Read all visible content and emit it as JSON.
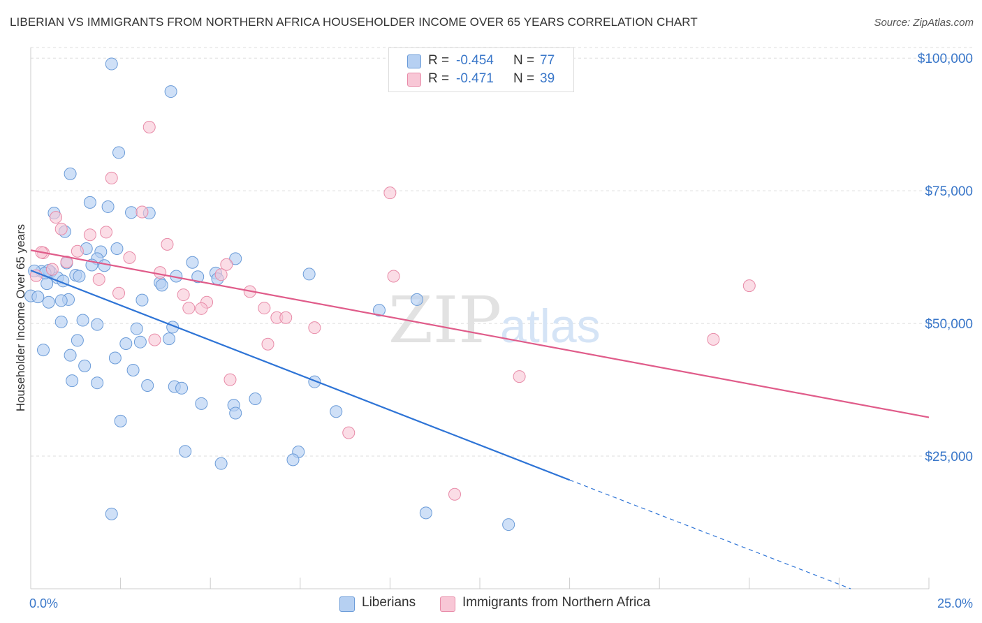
{
  "title": "LIBERIAN VS IMMIGRANTS FROM NORTHERN AFRICA HOUSEHOLDER INCOME OVER 65 YEARS CORRELATION CHART",
  "source": "Source: ZipAtlas.com",
  "watermark": {
    "zip": "ZIP",
    "atlas": "atlas"
  },
  "legend": {
    "series1": {
      "r_label": "R =",
      "r_value": "-0.454",
      "n_label": "N =",
      "n_value": "77"
    },
    "series2": {
      "r_label": "R =",
      "r_value": "-0.471",
      "n_label": "N =",
      "n_value": "39"
    }
  },
  "bottom_legend": {
    "series1": "Liberians",
    "series2": "Immigrants from Northern Africa"
  },
  "colors": {
    "series1_fill": "#b6d0f2",
    "series1_stroke": "#6a9bd8",
    "series1_line": "#2e74d6",
    "series2_fill": "#f8c7d6",
    "series2_stroke": "#e88ba8",
    "series2_line": "#e05c8a",
    "axis_label": "#3a77c9",
    "grid": "#dddddd"
  },
  "chart_data": {
    "type": "scatter",
    "title": "LIBERIAN VS IMMIGRANTS FROM NORTHERN AFRICA HOUSEHOLDER INCOME OVER 65 YEARS CORRELATION CHART",
    "xlabel": "",
    "ylabel": "Householder Income Over 65 years",
    "xlim": [
      0,
      25
    ],
    "ylim": [
      0,
      102000
    ],
    "x_tick_labels": [
      "0.0%",
      "25.0%"
    ],
    "y_ticks": [
      25000,
      50000,
      75000,
      100000
    ],
    "y_tick_labels": [
      "$25,000",
      "$50,000",
      "$75,000",
      "$100,000"
    ],
    "grid": true,
    "legend_position": "top-center",
    "series": [
      {
        "name": "Liberians",
        "color": "#b6d0f2",
        "trend": {
          "x": [
            0,
            15
          ],
          "y": [
            60000,
            20500
          ],
          "dashed_to": [
            25,
            -5700
          ]
        },
        "points": [
          [
            2.25,
            98900
          ],
          [
            3.9,
            93700
          ],
          [
            2.45,
            82200
          ],
          [
            1.1,
            78200
          ],
          [
            1.65,
            72800
          ],
          [
            2.15,
            72000
          ],
          [
            0.65,
            70800
          ],
          [
            2.8,
            70900
          ],
          [
            3.3,
            70800
          ],
          [
            0.95,
            67300
          ],
          [
            1.55,
            64100
          ],
          [
            2.4,
            64100
          ],
          [
            1.95,
            63500
          ],
          [
            1.85,
            62200
          ],
          [
            5.7,
            62200
          ],
          [
            4.5,
            61500
          ],
          [
            1.0,
            61400
          ],
          [
            1.7,
            61000
          ],
          [
            2.05,
            60900
          ],
          [
            0.3,
            59800
          ],
          [
            0.55,
            59700
          ],
          [
            5.15,
            59500
          ],
          [
            7.75,
            59300
          ],
          [
            1.25,
            59100
          ],
          [
            1.35,
            58900
          ],
          [
            4.65,
            58800
          ],
          [
            4.05,
            58900
          ],
          [
            0.75,
            58600
          ],
          [
            0.9,
            58000
          ],
          [
            5.2,
            58400
          ],
          [
            3.6,
            57700
          ],
          [
            0.45,
            57500
          ],
          [
            3.65,
            57200
          ],
          [
            0.0,
            55200
          ],
          [
            0.2,
            55000
          ],
          [
            1.05,
            54500
          ],
          [
            3.1,
            54400
          ],
          [
            0.5,
            54000
          ],
          [
            0.85,
            54300
          ],
          [
            10.75,
            54500
          ],
          [
            9.7,
            52500
          ],
          [
            0.85,
            50300
          ],
          [
            1.45,
            50600
          ],
          [
            1.85,
            49800
          ],
          [
            3.95,
            49300
          ],
          [
            2.95,
            49000
          ],
          [
            3.85,
            47100
          ],
          [
            1.3,
            46800
          ],
          [
            3.05,
            46500
          ],
          [
            2.65,
            46200
          ],
          [
            0.35,
            45000
          ],
          [
            1.1,
            44000
          ],
          [
            2.35,
            43500
          ],
          [
            1.5,
            42000
          ],
          [
            2.85,
            41200
          ],
          [
            1.15,
            39200
          ],
          [
            1.85,
            38800
          ],
          [
            7.9,
            39000
          ],
          [
            3.25,
            38300
          ],
          [
            4.0,
            38100
          ],
          [
            4.2,
            37800
          ],
          [
            6.25,
            35800
          ],
          [
            4.75,
            34900
          ],
          [
            5.65,
            34600
          ],
          [
            8.5,
            33400
          ],
          [
            5.7,
            33100
          ],
          [
            2.5,
            31600
          ],
          [
            4.3,
            25900
          ],
          [
            7.45,
            25800
          ],
          [
            7.3,
            24300
          ],
          [
            5.3,
            23600
          ],
          [
            13.3,
            12100
          ],
          [
            2.25,
            14100
          ],
          [
            11.0,
            14300
          ],
          [
            0.1,
            59900
          ],
          [
            0.5,
            60000
          ],
          [
            0.4,
            59500
          ]
        ]
      },
      {
        "name": "Immigrants from Northern Africa",
        "color": "#f8c7d6",
        "trend": {
          "x": [
            0,
            25
          ],
          "y": [
            63800,
            32300
          ]
        },
        "points": [
          [
            3.3,
            87000
          ],
          [
            2.25,
            77400
          ],
          [
            10.0,
            74600
          ],
          [
            3.1,
            71000
          ],
          [
            0.7,
            70000
          ],
          [
            0.85,
            67800
          ],
          [
            2.1,
            67200
          ],
          [
            1.65,
            66700
          ],
          [
            3.8,
            64900
          ],
          [
            1.3,
            63600
          ],
          [
            0.35,
            63300
          ],
          [
            2.75,
            62400
          ],
          [
            1.0,
            61600
          ],
          [
            5.45,
            61100
          ],
          [
            0.6,
            60200
          ],
          [
            3.6,
            59600
          ],
          [
            5.3,
            59200
          ],
          [
            0.15,
            59000
          ],
          [
            1.9,
            58300
          ],
          [
            10.1,
            58900
          ],
          [
            20.0,
            57100
          ],
          [
            6.1,
            56000
          ],
          [
            4.25,
            55400
          ],
          [
            2.45,
            55700
          ],
          [
            4.9,
            54000
          ],
          [
            4.4,
            52900
          ],
          [
            4.75,
            52800
          ],
          [
            6.5,
            52900
          ],
          [
            6.85,
            51100
          ],
          [
            7.1,
            51100
          ],
          [
            7.9,
            49200
          ],
          [
            3.45,
            46900
          ],
          [
            6.6,
            46100
          ],
          [
            19.0,
            47000
          ],
          [
            13.6,
            40000
          ],
          [
            5.55,
            39400
          ],
          [
            8.85,
            29400
          ],
          [
            11.8,
            17800
          ],
          [
            0.3,
            63400
          ]
        ]
      }
    ]
  }
}
